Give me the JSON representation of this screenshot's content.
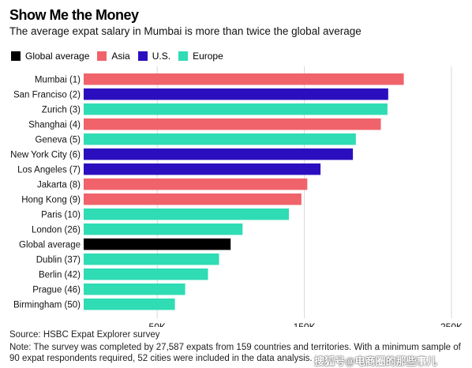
{
  "title": "Show Me the Money",
  "subtitle": "The average expat salary in Mumbai is more than twice the global average",
  "legend": [
    {
      "label": "Global average",
      "color": "#000000"
    },
    {
      "label": "Asia",
      "color": "#f0636b"
    },
    {
      "label": "U.S.",
      "color": "#2b0fbf"
    },
    {
      "label": "Europe",
      "color": "#2fdcb4"
    }
  ],
  "chart_data": {
    "type": "bar",
    "orientation": "horizontal",
    "categories": [
      "Mumbai (1)",
      "San Franciso (2)",
      "Zurich (3)",
      "Shanghai (4)",
      "Geneva (5)",
      "New York City (6)",
      "Los Angeles (7)",
      "Jakarta (8)",
      "Hong Kong (9)",
      "Paris (10)",
      "London (26)",
      "Global average",
      "Dublin (37)",
      "Berlin (42)",
      "Prague (46)",
      "Birmingham (50)"
    ],
    "values": [
      217580,
      207000,
      206500,
      202000,
      185000,
      183000,
      161000,
      152000,
      148000,
      139500,
      108000,
      99900,
      92000,
      84500,
      69000,
      62000
    ],
    "groups": [
      "Asia",
      "U.S.",
      "Europe",
      "Asia",
      "Europe",
      "U.S.",
      "U.S.",
      "Asia",
      "Asia",
      "Europe",
      "Europe",
      "Global average",
      "Europe",
      "Europe",
      "Europe",
      "Europe"
    ],
    "group_colors": {
      "Global average": "#000000",
      "Asia": "#f0636b",
      "U.S.": "#2b0fbf",
      "Europe": "#2fdcb4"
    },
    "xlim": [
      0,
      250000
    ],
    "xticks": [
      50000,
      150000,
      250000
    ],
    "xtick_labels": [
      "50K",
      "150K",
      "250K"
    ],
    "grid": true,
    "legend_position": "top-left"
  },
  "source": "Source: HSBC Expat Explorer survey",
  "note": "Note: The survey was completed by 27,587 expats from 159 countries and territories. With a minimum sample of 90 expat respondents required, 52 cities were included in the data analysis.",
  "watermark": "搜狐号@电商圈的那些事儿"
}
